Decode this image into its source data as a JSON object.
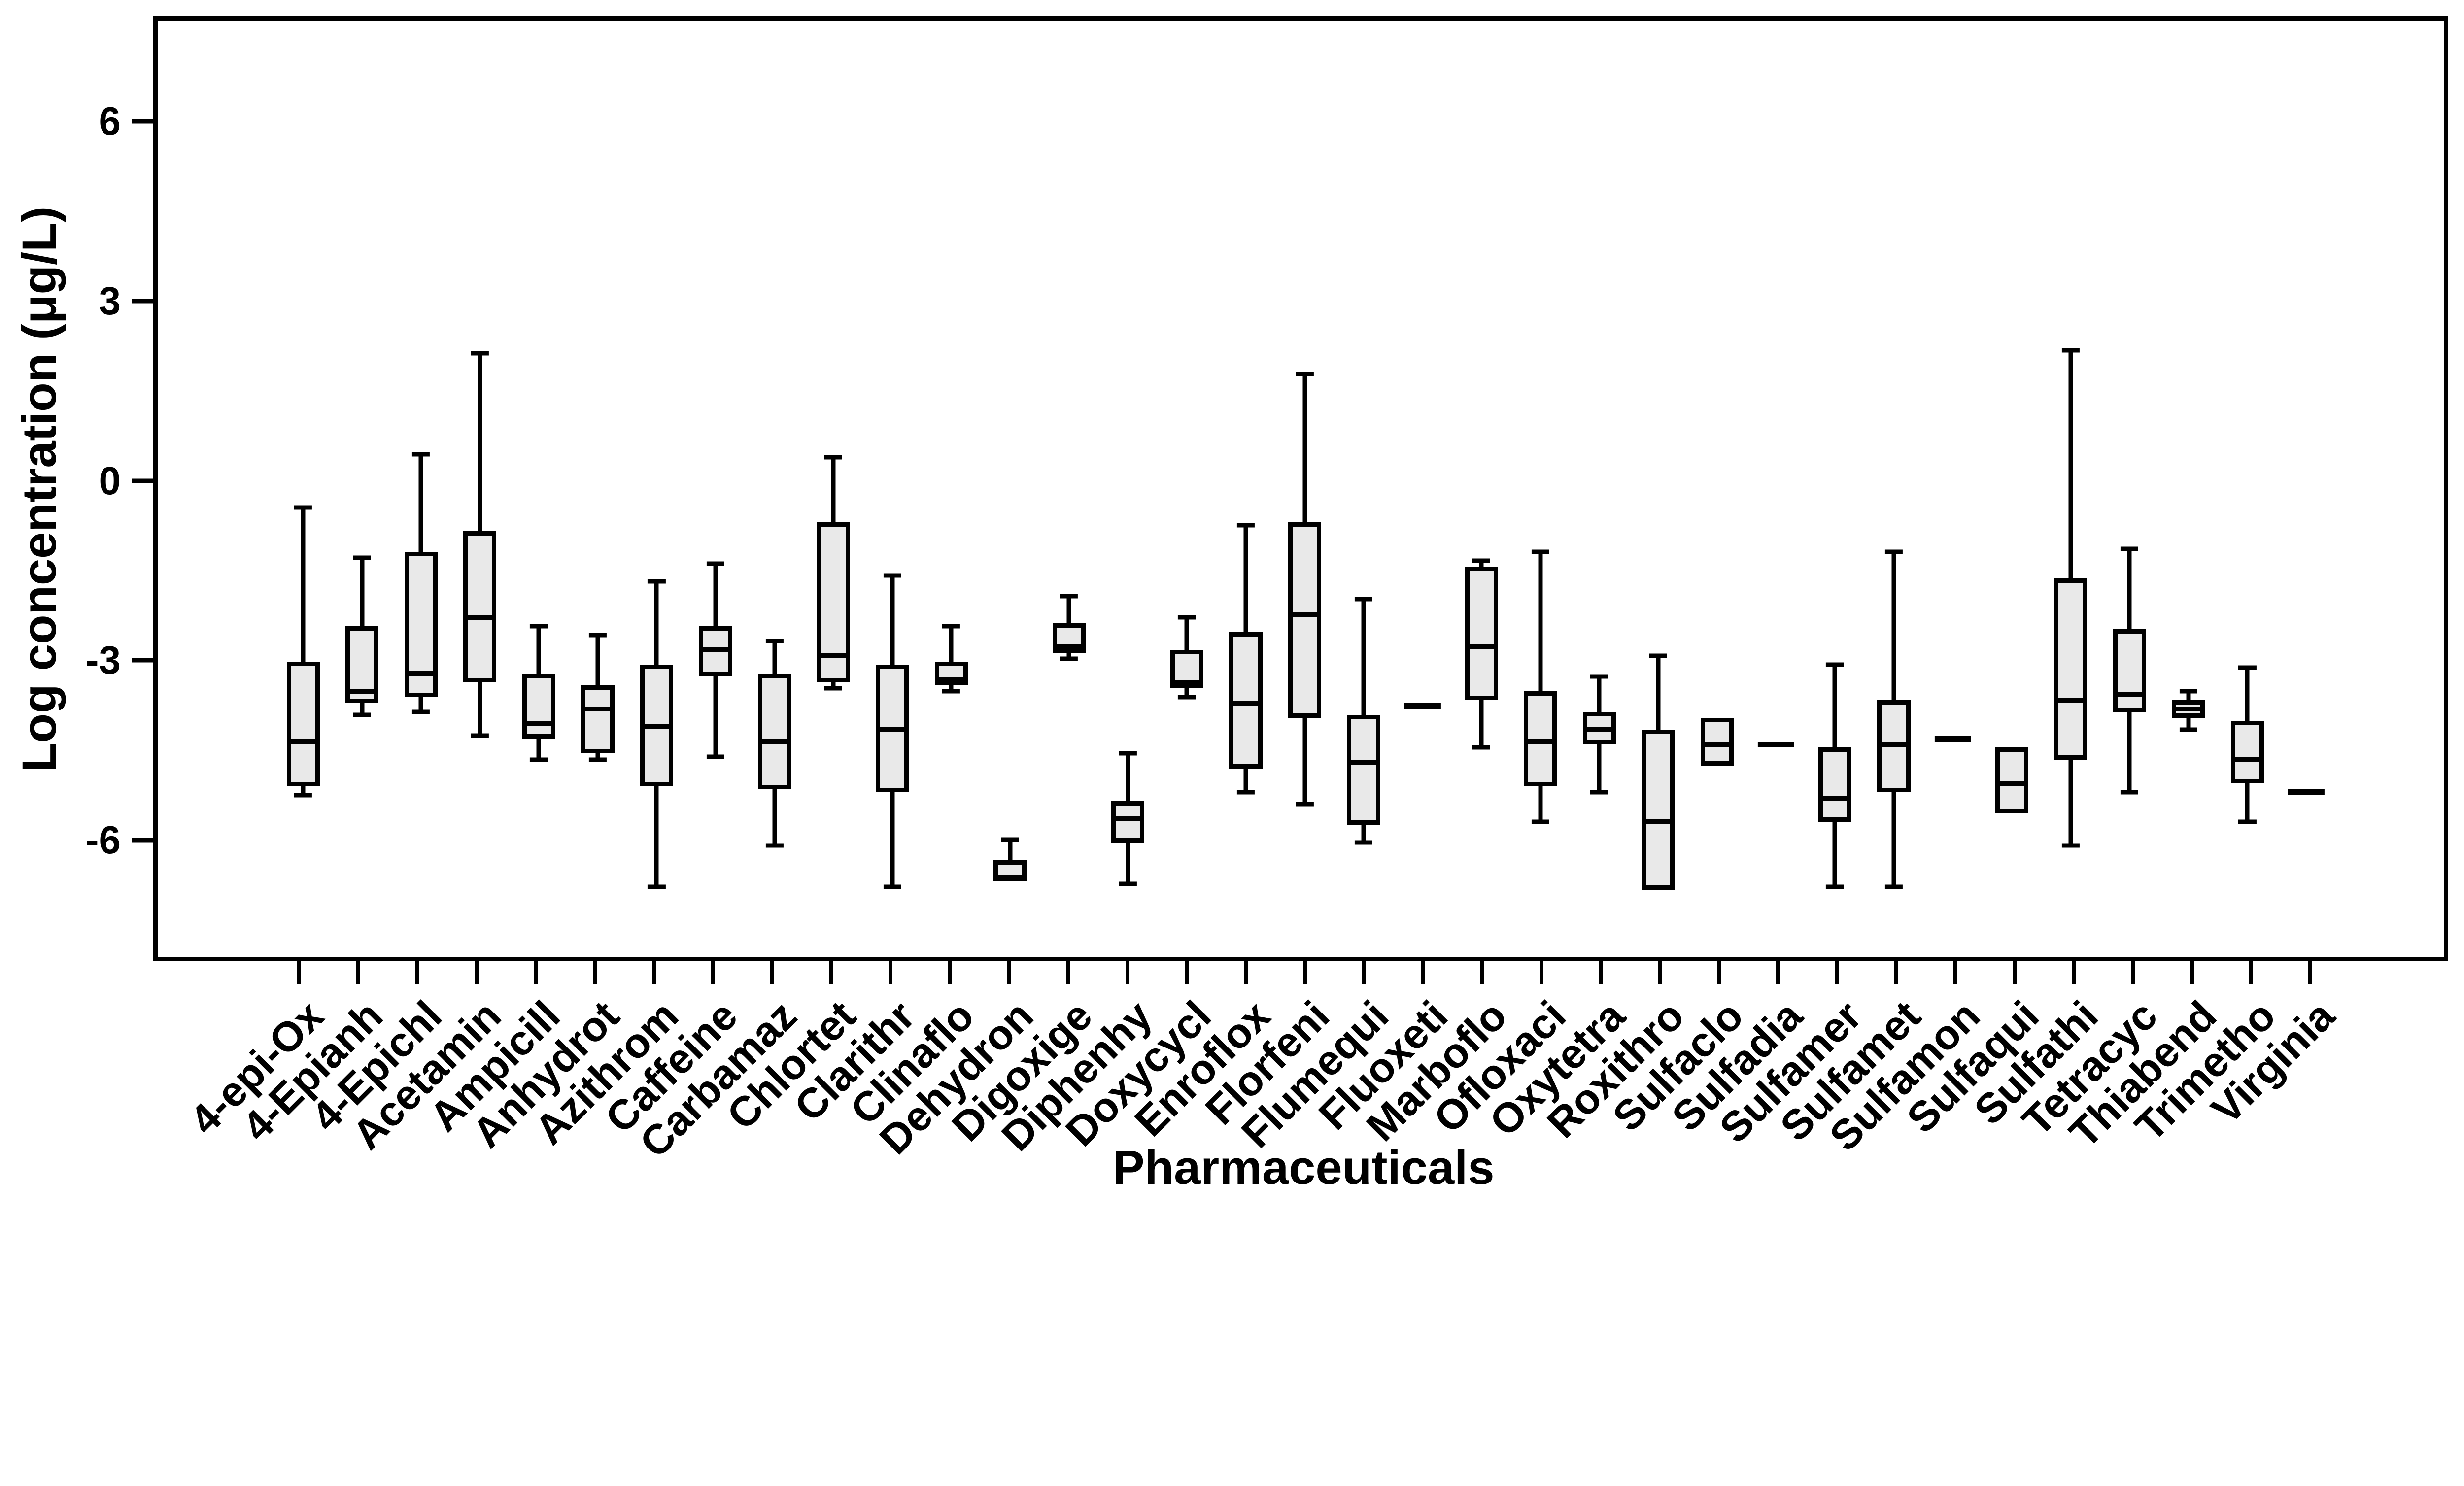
{
  "chart_data": {
    "type": "boxplot",
    "title": "",
    "xlabel": "Pharmaceuticals",
    "ylabel": "Log concentration (μg/L)",
    "yticks": [
      6,
      3,
      0,
      -3,
      -6
    ],
    "ylim": [
      -8.03,
      7.76
    ],
    "grid": false,
    "legend": null,
    "box_fill": "#e9e9e9",
    "line_color": "#000000",
    "background": "#ffffff",
    "categories": [
      "4-epi-Ox",
      "4-Epianh",
      "4-Epichl",
      "Acetamin",
      "Ampicill",
      "Anhydrot",
      "Azithrom",
      "Caffeine",
      "Carbamaz",
      "Chlortet",
      "Clarithr",
      "Clinaflo",
      "Dehydron",
      "Digoxige",
      "Diphenhy",
      "Doxycycl",
      "Enroflox",
      "Florfeni",
      "Flumequi",
      "Fluoxeti",
      "Marboflo",
      "Ofloxaci",
      "Oxytetra",
      "Roxithro",
      "Sulfaclo",
      "Sulfadia",
      "Sulfamer",
      "Sulfamet",
      "Sulfamon",
      "Sulfaqui",
      "Sulfathi",
      "Tetracyc",
      "Thiabend",
      "Trimetho",
      "Virginia"
    ],
    "stats": [
      {
        "whislo": -5.3,
        "q1": -5.15,
        "med": -4.4,
        "q3": -3.05,
        "whishi": -0.45
      },
      {
        "whislo": -3.95,
        "q1": -3.75,
        "med": -3.55,
        "q3": -2.45,
        "whishi": -1.3
      },
      {
        "whislo": -3.9,
        "q1": -3.65,
        "med": -3.25,
        "q3": -1.2,
        "whishi": 0.45
      },
      {
        "whislo": -4.3,
        "q1": -3.4,
        "med": -2.3,
        "q3": -0.85,
        "whishi": 2.15
      },
      {
        "whislo": -4.7,
        "q1": -4.35,
        "med": -4.1,
        "q3": -3.25,
        "whishi": -2.45
      },
      {
        "whislo": -4.7,
        "q1": -4.6,
        "med": -3.85,
        "q3": -3.45,
        "whishi": -2.6
      },
      {
        "whislo": -6.85,
        "q1": -5.15,
        "med": -4.15,
        "q3": -3.1,
        "whishi": -1.7
      },
      {
        "whislo": -4.65,
        "q1": -3.3,
        "med": -2.85,
        "q3": -2.45,
        "whishi": -1.4
      },
      {
        "whislo": -6.15,
        "q1": -5.2,
        "med": -4.4,
        "q3": -3.25,
        "whishi": -2.7
      },
      {
        "whislo": -3.5,
        "q1": -3.4,
        "med": -2.95,
        "q3": -0.7,
        "whishi": 0.4
      },
      {
        "whislo": -6.85,
        "q1": -5.25,
        "med": -4.2,
        "q3": -3.1,
        "whishi": -1.6
      },
      {
        "whislo": -3.55,
        "q1": -3.45,
        "med": -3.35,
        "q3": -3.05,
        "whishi": -2.45
      },
      {
        "whislo": null,
        "q1": -6.75,
        "med": -6.68,
        "q3": -6.4,
        "whishi": -6.05
      },
      {
        "whislo": -3.0,
        "q1": -2.9,
        "med": -2.8,
        "q3": -2.4,
        "whishi": -1.95
      },
      {
        "whislo": -6.8,
        "q1": -6.1,
        "med": -5.7,
        "q3": -5.4,
        "whishi": -4.6
      },
      {
        "whislo": -3.65,
        "q1": -3.5,
        "med": -3.4,
        "q3": -2.85,
        "whishi": -2.3
      },
      {
        "whislo": -5.25,
        "q1": -4.85,
        "med": -3.75,
        "q3": -2.55,
        "whishi": -0.75
      },
      {
        "whislo": -5.45,
        "q1": -4.0,
        "med": -2.25,
        "q3": -0.7,
        "whishi": 1.8
      },
      {
        "whislo": -6.1,
        "q1": -5.8,
        "med": -4.75,
        "q3": -3.95,
        "whishi": -2.0
      },
      {
        "whislo": null,
        "q1": null,
        "med": -3.8,
        "q3": null,
        "whishi": null
      },
      {
        "whislo": -4.5,
        "q1": -3.7,
        "med": -2.8,
        "q3": -1.45,
        "whishi": -1.35
      },
      {
        "whislo": -5.75,
        "q1": -5.15,
        "med": -4.4,
        "q3": -3.55,
        "whishi": -1.2
      },
      {
        "whislo": -5.25,
        "q1": -4.45,
        "med": -4.2,
        "q3": -3.9,
        "whishi": -3.3
      },
      {
        "whislo": null,
        "q1": -6.9,
        "med": -5.75,
        "q3": -4.2,
        "whishi": -2.95
      },
      {
        "whislo": null,
        "q1": -4.8,
        "med": -4.45,
        "q3": -4.0,
        "whishi": null
      },
      {
        "whislo": null,
        "q1": null,
        "med": -4.45,
        "q3": null,
        "whishi": null
      },
      {
        "whislo": -6.85,
        "q1": -5.75,
        "med": -5.35,
        "q3": -4.5,
        "whishi": -3.1
      },
      {
        "whislo": -6.85,
        "q1": -5.25,
        "med": -4.45,
        "q3": -3.7,
        "whishi": -1.2
      },
      {
        "whislo": null,
        "q1": null,
        "med": -4.35,
        "q3": null,
        "whishi": null
      },
      {
        "whislo": null,
        "q1": -5.6,
        "med": -5.1,
        "q3": -4.5,
        "whishi": null
      },
      {
        "whislo": -6.15,
        "q1": -4.7,
        "med": -3.7,
        "q3": -1.65,
        "whishi": 2.2
      },
      {
        "whislo": -5.25,
        "q1": -3.9,
        "med": -3.6,
        "q3": -2.5,
        "whishi": -1.15
      },
      {
        "whislo": -4.2,
        "q1": -4.0,
        "med": -3.85,
        "q3": -3.7,
        "whishi": -3.55
      },
      {
        "whislo": -5.75,
        "q1": -5.1,
        "med": -4.7,
        "q3": -4.05,
        "whishi": -3.15
      },
      {
        "whislo": null,
        "q1": null,
        "med": -5.25,
        "q3": null,
        "whishi": null
      }
    ]
  }
}
